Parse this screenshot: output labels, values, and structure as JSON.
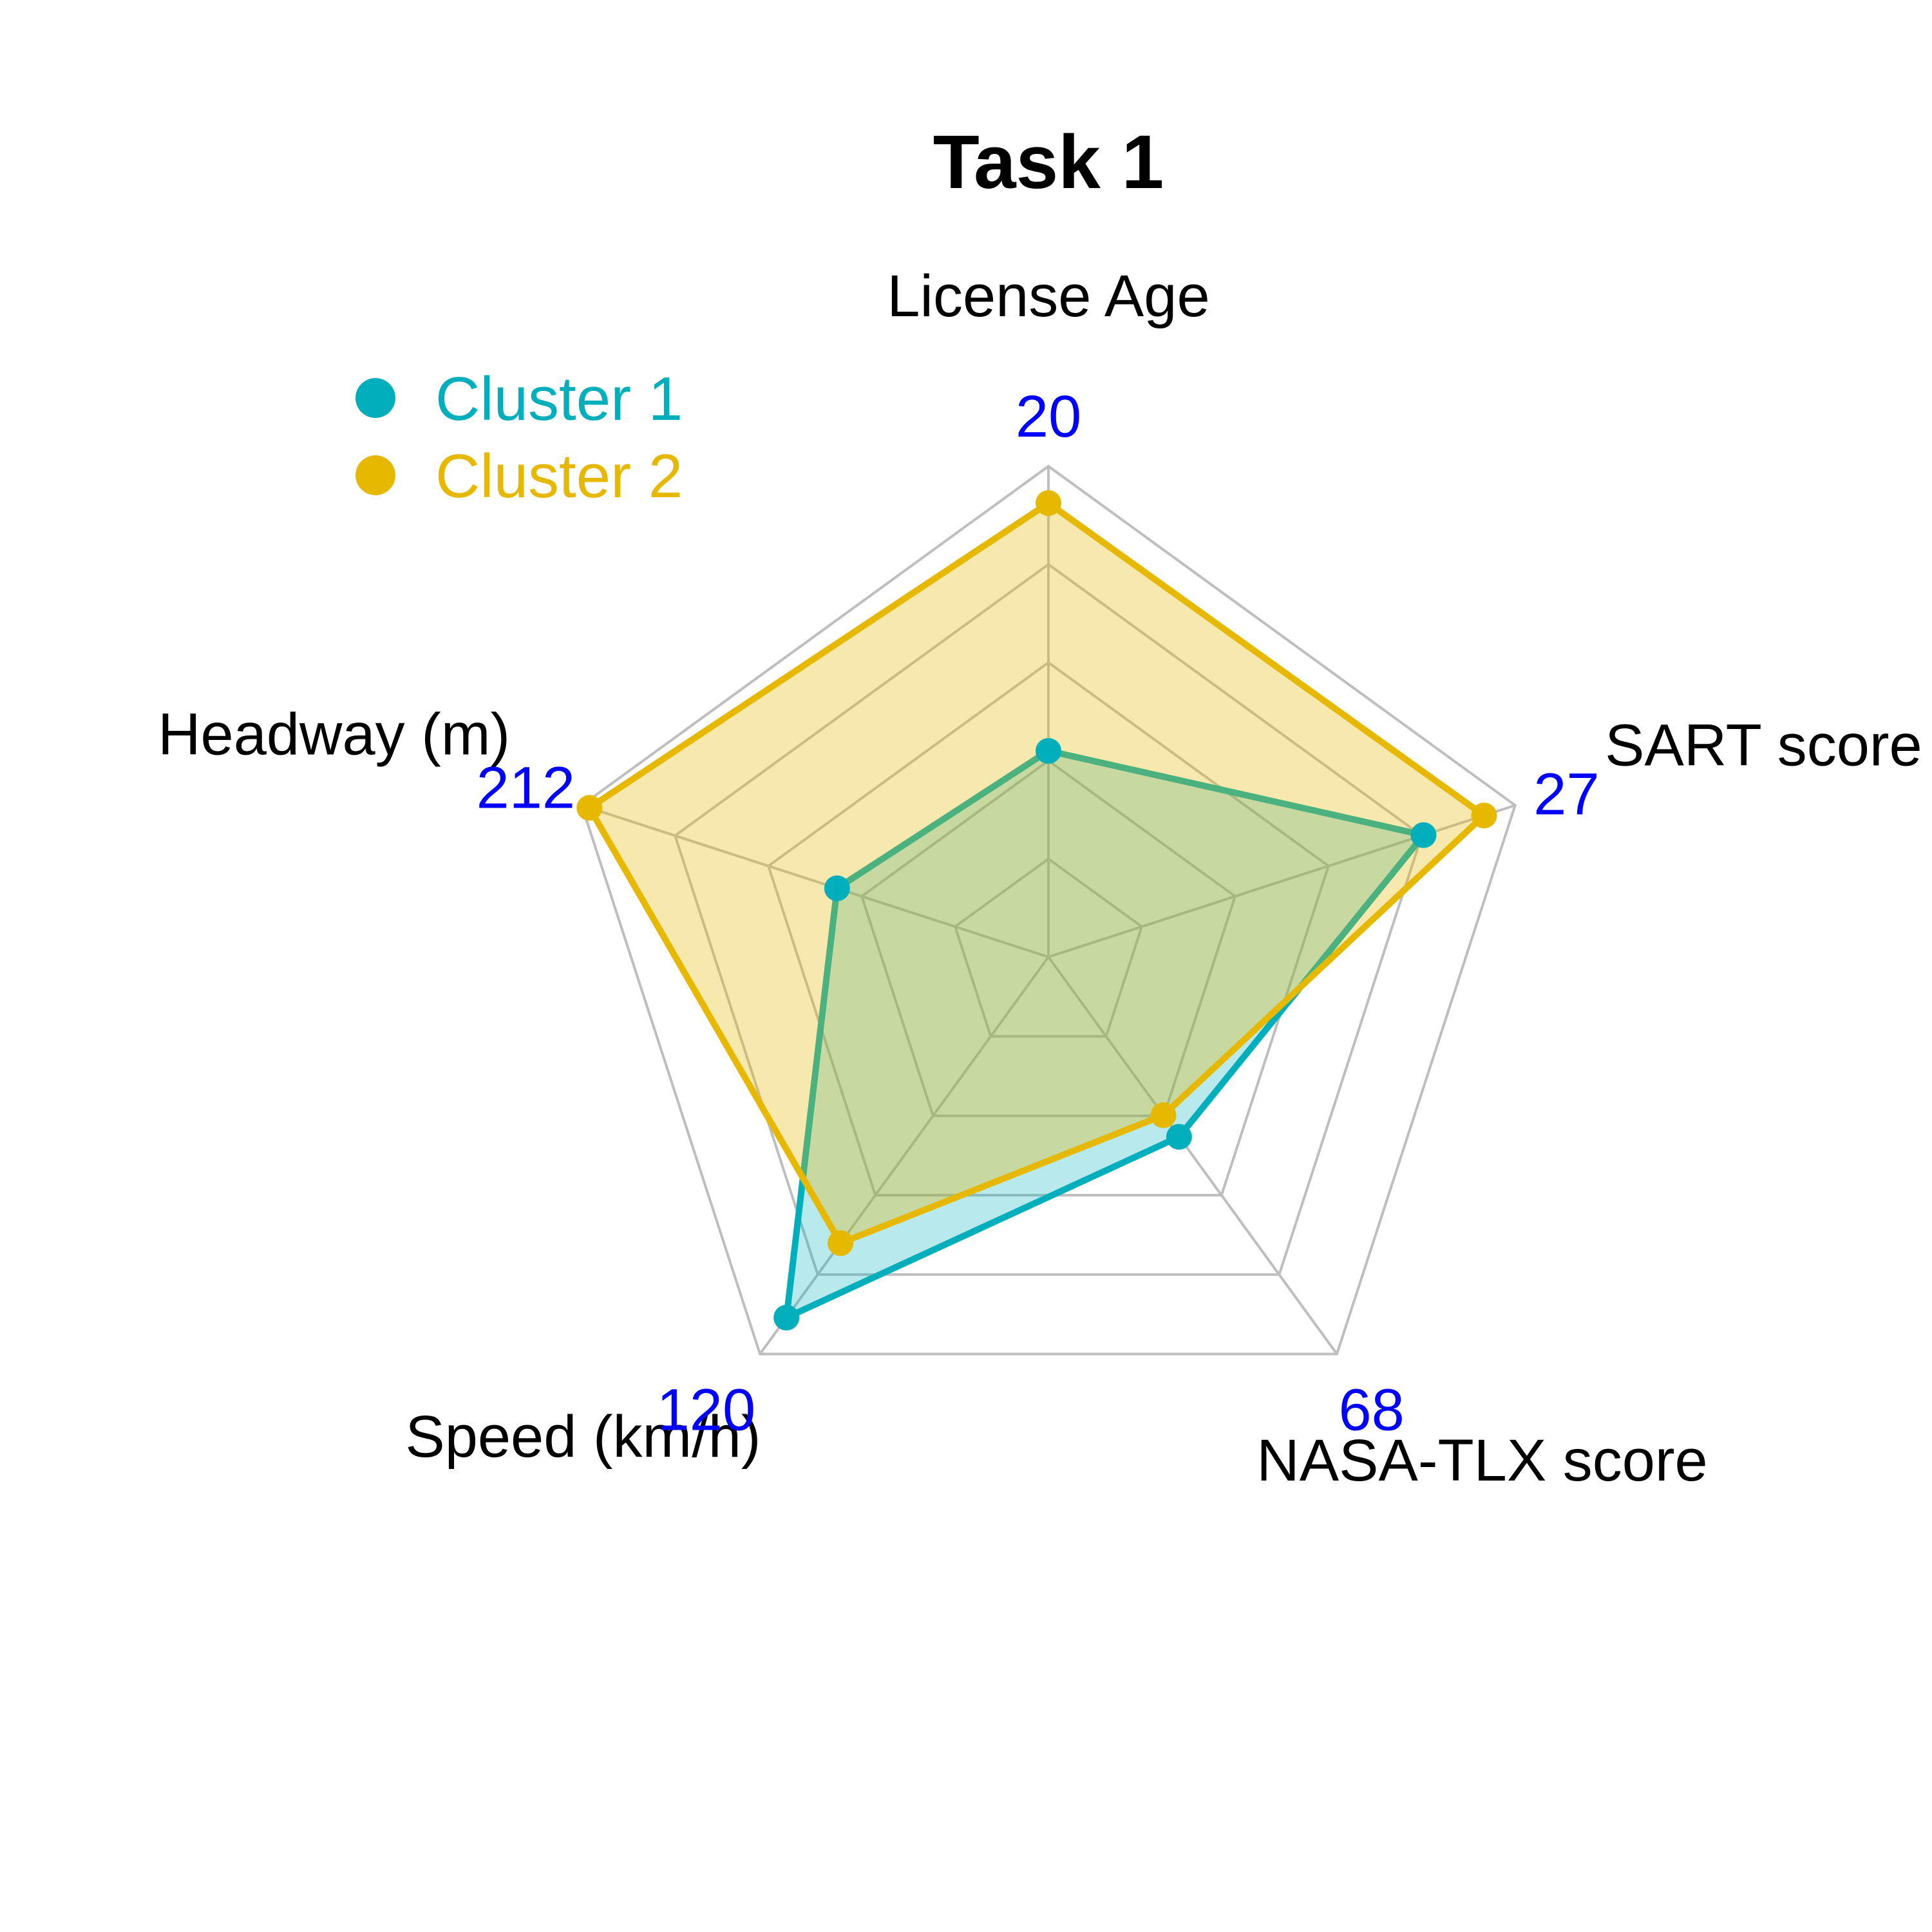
{
  "chart_data": {
    "type": "radar",
    "title": "Task 1",
    "axes": [
      {
        "label": "License Age",
        "max": 20,
        "max_label": "20"
      },
      {
        "label": "SART score",
        "max": 27,
        "max_label": "27"
      },
      {
        "label": "NASA-TLX score",
        "max": 68,
        "max_label": "68"
      },
      {
        "label": "Speed (km/h)",
        "max": 120,
        "max_label": "120"
      },
      {
        "label": "Headway (m)",
        "max": 212,
        "max_label": "212"
      }
    ],
    "grid_levels": 5,
    "series": [
      {
        "name": "Cluster 1",
        "color": "#00AFBB",
        "fill_opacity": 0.28,
        "values": [
          8.4,
          21.7,
          30.8,
          109.0,
          96.0
        ]
      },
      {
        "name": "Cluster 2",
        "color": "#E7B800",
        "fill_opacity": 0.32,
        "values": [
          18.5,
          25.2,
          27.1,
          86.5,
          208.5
        ]
      }
    ],
    "legend": {
      "position": "top-left"
    },
    "colors": {
      "grid": "#BEBEBE",
      "max_label": "#0000FF"
    }
  }
}
